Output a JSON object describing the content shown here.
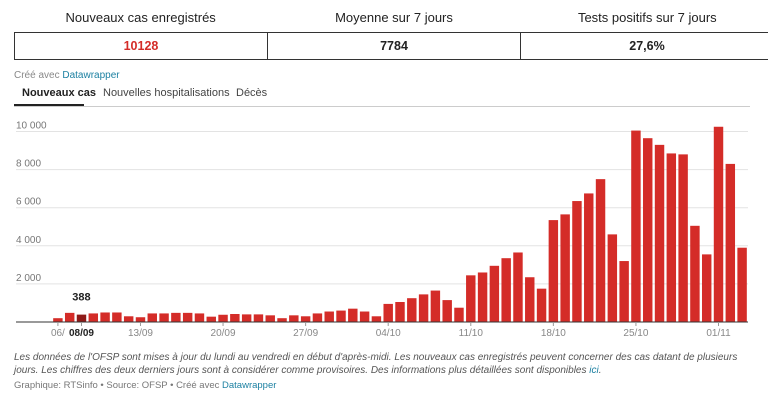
{
  "stats": {
    "new_cases_label": "Nouveaux cas enregistrés",
    "new_cases_value": "10128",
    "avg_label": "Moyenne sur 7 jours",
    "avg_value": "7784",
    "positive_label": "Tests positifs sur 7 jours",
    "positive_value": "27,6%"
  },
  "credit": {
    "prefix": "Créé avec",
    "link": "Datawrapper"
  },
  "tabs": [
    "Nouveaux cas",
    "Nouvelles hospitalisations",
    "Décès"
  ],
  "notes": {
    "text": "Les données de l'OFSP sont mises à jour du lundi au vendredi en début d'après-midi. Les nouveaux cas enregistrés peuvent concerner des cas datant de plusieurs jours. Les chiffres des deux derniers jours sont à considérer comme provisoires. Des informations plus détaillées sont disponibles ",
    "link": "ici",
    "end": "."
  },
  "footer": {
    "prefix": "Graphique: RTSinfo • Source: OFSP • Créé avec",
    "link": "Datawrapper"
  },
  "colors": {
    "bar": "#d42c28",
    "highlight": "#8e1a18",
    "value_red": "#d42c28",
    "link": "#1d81a2"
  },
  "chart_data": {
    "type": "bar",
    "y_ticks": [
      "2 000",
      "4 000",
      "6 000",
      "8 000",
      "10 000"
    ],
    "y_tick_values": [
      2000,
      4000,
      6000,
      8000,
      10000
    ],
    "ylim": [
      0,
      10500
    ],
    "grid": true,
    "x_ticks": [
      {
        "index": 0,
        "label": "06/"
      },
      {
        "index": 2,
        "label": "08/09"
      },
      {
        "index": 7,
        "label": "13/09"
      },
      {
        "index": 14,
        "label": "20/09"
      },
      {
        "index": 21,
        "label": "27/09"
      },
      {
        "index": 28,
        "label": "04/10"
      },
      {
        "index": 35,
        "label": "11/10"
      },
      {
        "index": 42,
        "label": "18/10"
      },
      {
        "index": 49,
        "label": "25/10"
      },
      {
        "index": 56,
        "label": "01/11"
      }
    ],
    "annotation": {
      "index": 2,
      "label": "388"
    },
    "highlight_index": 2,
    "values": [
      200,
      480,
      388,
      450,
      500,
      500,
      300,
      250,
      450,
      450,
      480,
      480,
      450,
      280,
      380,
      420,
      400,
      400,
      350,
      200,
      350,
      300,
      450,
      550,
      600,
      700,
      550,
      300,
      950,
      1050,
      1250,
      1450,
      1650,
      1150,
      750,
      2450,
      2600,
      2950,
      3350,
      3650,
      2350,
      1750,
      5350,
      5650,
      6350,
      6750,
      7500,
      4600,
      3200,
      10050,
      9650,
      9300,
      8850,
      8800,
      5050,
      3550,
      10250,
      8300,
      3900
    ]
  }
}
